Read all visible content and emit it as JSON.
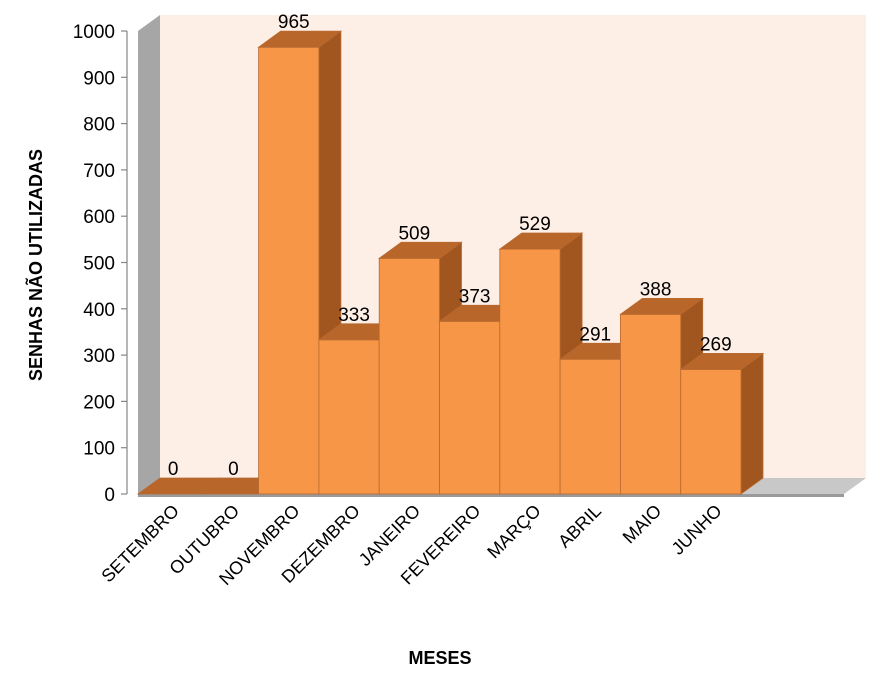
{
  "chart_data": {
    "type": "bar",
    "categories": [
      "SETEMBRO",
      "OUTUBRO",
      "NOVEMBRO",
      "DEZEMBRO",
      "JANEIRO",
      "FEVEREIRO",
      "MARÇO",
      "ABRIL",
      "MAIO",
      "JUNHO"
    ],
    "values": [
      0,
      0,
      965,
      333,
      509,
      373,
      529,
      291,
      388,
      269
    ],
    "xlabel": "MESES",
    "ylabel": "SENHAS NÃO UTILIZADAS",
    "ylim": [
      0,
      1000
    ],
    "yticks": [
      0,
      100,
      200,
      300,
      400,
      500,
      600,
      700,
      800,
      900,
      1000
    ],
    "grid": false,
    "legend": "none",
    "three_d": true,
    "colors": {
      "bar_front": "#F79646",
      "bar_top": "#B8662A",
      "bar_side": "#A0561E",
      "bar_edge": "#B86A30",
      "back_wall": "#FDEEE6",
      "side_wall": "#A6A6A6",
      "floor": "#C8C8C8"
    }
  }
}
